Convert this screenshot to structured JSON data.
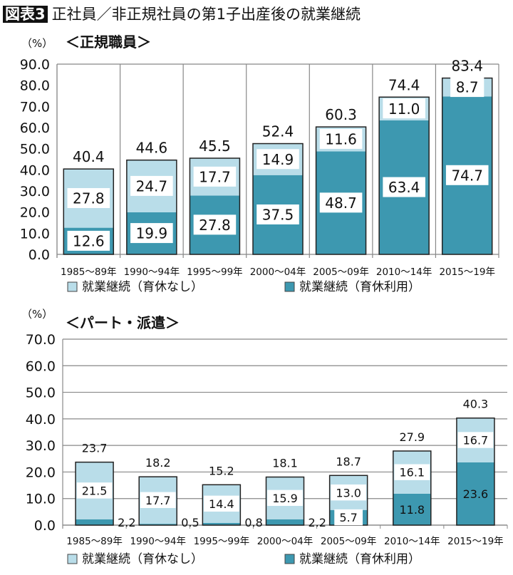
{
  "title": {
    "badge": "図表3",
    "text": "正社員／非正規社員の第1子出産後の就業継続"
  },
  "colors": {
    "no_leave": "#b9dde9",
    "with_leave": "#3d98b0",
    "border": "#222222"
  },
  "chart_data": [
    {
      "type": "bar",
      "stacked": true,
      "title": "＜正規職員＞",
      "ylabel": "（%）",
      "ylim": [
        0,
        90
      ],
      "yticks": [
        "0.0",
        "10.0",
        "20.0",
        "30.0",
        "40.0",
        "50.0",
        "60.0",
        "70.0",
        "80.0",
        "90.0"
      ],
      "grid": "vertical separators",
      "legend_placement": "bottom",
      "categories": [
        "1985～89年",
        "1990～94年",
        "1995～99年",
        "2000～04年",
        "2005～09年",
        "2010～14年",
        "2015～19年"
      ],
      "series": [
        {
          "name": "就業継続（育休利用）",
          "values": [
            12.6,
            19.9,
            27.8,
            37.5,
            48.7,
            63.4,
            74.7
          ]
        },
        {
          "name": "就業継続（育休なし）",
          "values": [
            27.8,
            24.7,
            17.7,
            14.9,
            11.6,
            11.0,
            8.7
          ]
        }
      ],
      "totals": [
        40.4,
        44.6,
        45.5,
        52.4,
        60.3,
        74.4,
        83.4
      ]
    },
    {
      "type": "bar",
      "stacked": true,
      "title": "＜パート・派遣＞",
      "ylabel": "（%）",
      "ylim": [
        0,
        70
      ],
      "yticks": [
        "0.0",
        "10.0",
        "20.0",
        "30.0",
        "40.0",
        "50.0",
        "60.0",
        "70.0"
      ],
      "grid": "horizontal",
      "legend_placement": "bottom",
      "categories": [
        "1985～89年",
        "1990～94年",
        "1995～99年",
        "2000～04年",
        "2005～09年",
        "2010～14年",
        "2015～19年"
      ],
      "series": [
        {
          "name": "就業継続（育休利用）",
          "values": [
            2.2,
            0.5,
            0.8,
            2.2,
            5.7,
            11.8,
            23.6
          ]
        },
        {
          "name": "就業継続（育休なし）",
          "values": [
            21.5,
            17.7,
            14.4,
            15.9,
            13.0,
            16.1,
            16.7
          ]
        }
      ],
      "totals": [
        23.7,
        18.2,
        15.2,
        18.1,
        18.7,
        27.9,
        40.3
      ]
    }
  ]
}
